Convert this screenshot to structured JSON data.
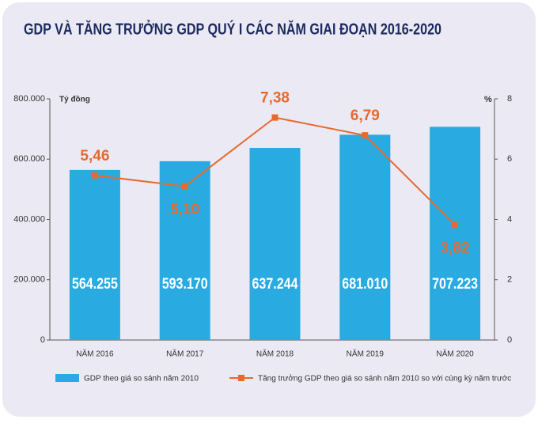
{
  "chart_data": {
    "type": "bar-line",
    "title": "GDP VÀ TĂNG TRƯỞNG GDP QUÝ I CÁC NĂM GIAI ĐOẠN 2016-2020",
    "y_label": "Tỷ đồng",
    "y2_label": "%",
    "categories": [
      "NĂM 2016",
      "NĂM 2017",
      "NĂM 2018",
      "NĂM 2019",
      "NĂM 2020"
    ],
    "series": [
      {
        "name": "GDP theo giá so sánh năm 2010",
        "type": "bar",
        "color": "#29abe2",
        "values": [
          564255,
          593170,
          637244,
          681010,
          707223
        ],
        "value_labels": [
          "564.255",
          "593.170",
          "637.244",
          "681.010",
          "707.223"
        ]
      },
      {
        "name": "Tăng trưởng GDP theo giá so sánh năm 2010 so với cùng kỳ năm trước",
        "type": "line",
        "axis": "y2",
        "color": "#e8692c",
        "values": [
          5.46,
          5.1,
          7.38,
          6.79,
          3.82
        ],
        "value_labels": [
          "5,46",
          "5,10",
          "7,38",
          "6,79",
          "3,82"
        ]
      }
    ],
    "ylim": [
      0,
      800000
    ],
    "yticks": [
      0,
      {
        "value": 200000,
        "label": "200.000"
      },
      {
        "value": 400000,
        "label": "400.000"
      },
      {
        "value": 600000,
        "label": "600.000"
      },
      {
        "value": 800000,
        "label": "800.000"
      }
    ],
    "y2lim": [
      0,
      8
    ],
    "y2ticks": [
      0,
      2,
      4,
      6,
      8
    ]
  }
}
